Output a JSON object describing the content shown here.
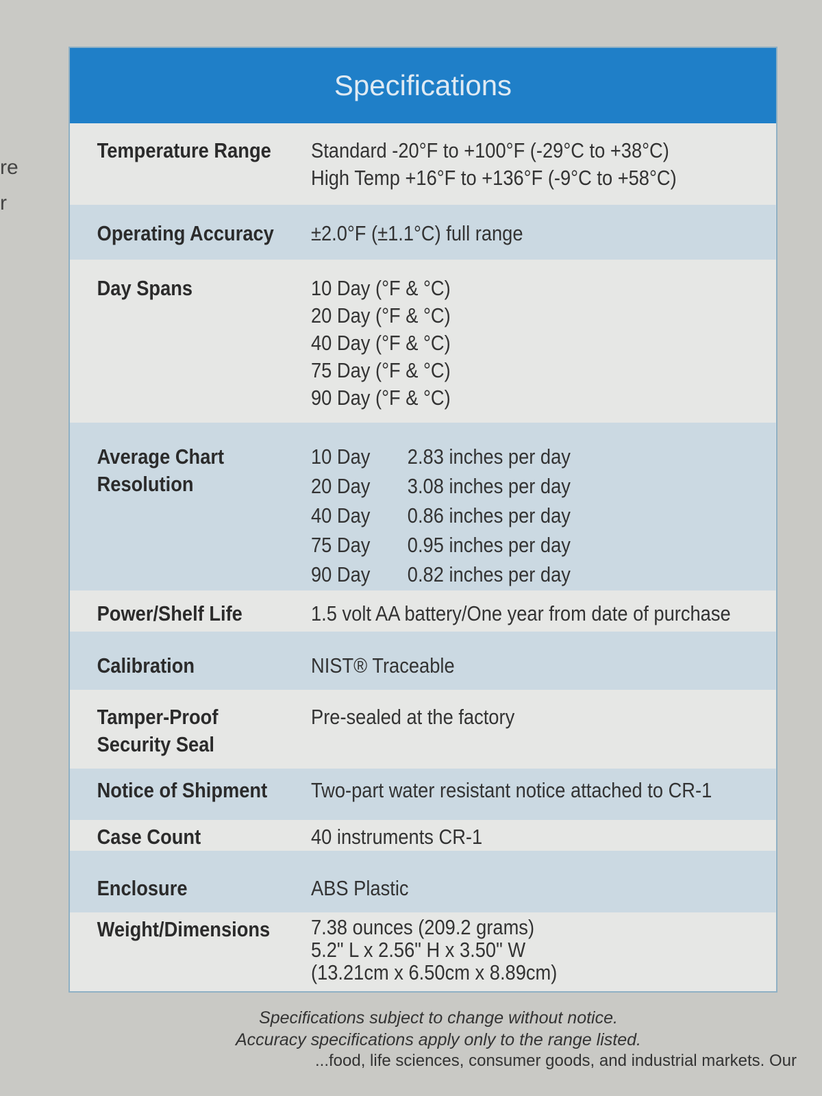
{
  "edge_text": [
    "re",
    "r"
  ],
  "title": "Specifications",
  "rows": [
    {
      "label": "Temperature Range",
      "values": [
        "Standard -20°F to +100°F (-29°C to +38°C)",
        "High Temp +16°F to +136°F (-9°C to +58°C)"
      ]
    },
    {
      "label": "Operating Accuracy",
      "values": [
        "±2.0°F (±1.1°C) full range"
      ]
    },
    {
      "label": "Day Spans",
      "values": [
        "10 Day (°F & °C)",
        "20 Day (°F & °C)",
        "40 Day (°F & °C)",
        "75 Day (°F & °C)",
        "90 Day (°F & °C)"
      ]
    },
    {
      "label": "Average Chart Resolution",
      "resolution": [
        {
          "span": "10 Day",
          "rate": "2.83 inches per day"
        },
        {
          "span": "20 Day",
          "rate": "3.08 inches per day"
        },
        {
          "span": "40 Day",
          "rate": "0.86 inches per day"
        },
        {
          "span": "75 Day",
          "rate": "0.95 inches per day"
        },
        {
          "span": "90 Day",
          "rate": "0.82 inches per day"
        }
      ]
    },
    {
      "label": "Power/Shelf Life",
      "values": [
        "1.5 volt AA battery/One year from date of purchase"
      ]
    },
    {
      "label": "Calibration",
      "values": [
        "NIST® Traceable"
      ]
    },
    {
      "label": "Tamper-Proof Security Seal",
      "values": [
        "Pre-sealed at the factory"
      ]
    },
    {
      "label": "Notice of Shipment",
      "values": [
        "Two-part water resistant notice attached to CR-1"
      ]
    },
    {
      "label": "Case Count",
      "values": [
        "40 instruments CR-1"
      ]
    },
    {
      "label": "Enclosure",
      "values": [
        "ABS Plastic"
      ]
    },
    {
      "label": "Weight/Dimensions",
      "values": [
        "7.38 ounces (209.2 grams)",
        "5.2\" L x 2.56\" H x 3.50\" W",
        "(13.21cm x 6.50cm x 8.89cm)"
      ]
    }
  ],
  "footnotes": [
    "Specifications subject to change without notice.",
    "Accuracy specifications apply only to the range listed."
  ],
  "bottom_text": "...food, life sciences, consumer goods, and industrial markets. Our"
}
